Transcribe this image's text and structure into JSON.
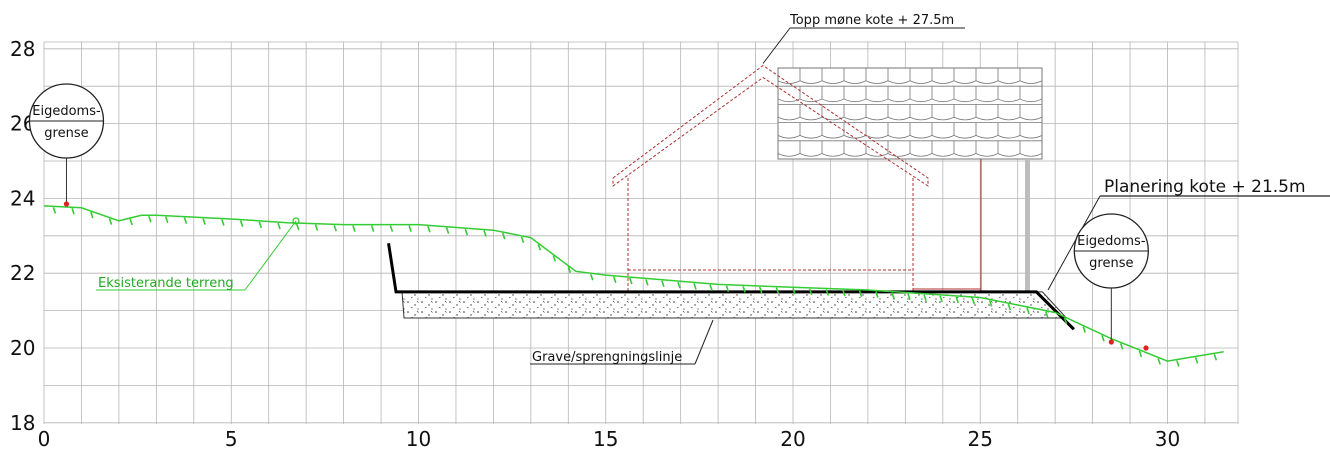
{
  "axes": {
    "x_ticks": [
      0,
      5,
      10,
      15,
      20,
      25,
      30
    ],
    "y_ticks": [
      18,
      20,
      22,
      24,
      26,
      28
    ],
    "x_range": [
      0,
      31.5
    ],
    "y_range": [
      17.8,
      28.4
    ],
    "grid": true
  },
  "labels": {
    "roof_top": "Topp møne kote + 27.5m",
    "planering": "Planering kote + 21.5m",
    "terrain": "Eksisterande terreng",
    "excavation": "Grave/sprengningslinje",
    "boundary_line1": "Eigedoms-",
    "boundary_line2": "grense"
  },
  "colors": {
    "terrain": "#33cc33",
    "terrain_text": "#22aa22",
    "house_outline": "#b03030",
    "grid": "#b5b5b5",
    "platform": "#000000",
    "boundary_pin": "#dd2222",
    "tiles": "#777777"
  },
  "chart_data": {
    "type": "line",
    "xlabel": "",
    "ylabel": "",
    "series": [
      {
        "points": [
          [
            0,
            23.8
          ],
          [
            1,
            23.75
          ],
          [
            2,
            23.4
          ],
          [
            2.6,
            23.55
          ],
          [
            3,
            23.55
          ],
          [
            5,
            23.45
          ],
          [
            6.5,
            23.35
          ],
          [
            8,
            23.3
          ],
          [
            10,
            23.3
          ],
          [
            12,
            23.15
          ],
          [
            13,
            22.95
          ],
          [
            14.2,
            22.05
          ],
          [
            15,
            21.95
          ],
          [
            18,
            21.7
          ],
          [
            22,
            21.55
          ],
          [
            25,
            21.35
          ],
          [
            26,
            21.15
          ],
          [
            27,
            20.95
          ],
          [
            28.5,
            20.25
          ],
          [
            30,
            19.65
          ],
          [
            31.5,
            19.9
          ]
        ]
      }
    ],
    "excavation_line": [
      [
        9.2,
        22.8
      ],
      [
        9.4,
        21.5
      ],
      [
        26.5,
        21.5
      ],
      [
        27.5,
        20.5
      ]
    ],
    "platform_level": 21.5,
    "platform_span": [
      9.4,
      26.5
    ],
    "roof_ridge": {
      "x": 19.2,
      "y": 27.5
    },
    "boundary_markers_x": [
      0.6,
      28.5
    ]
  }
}
